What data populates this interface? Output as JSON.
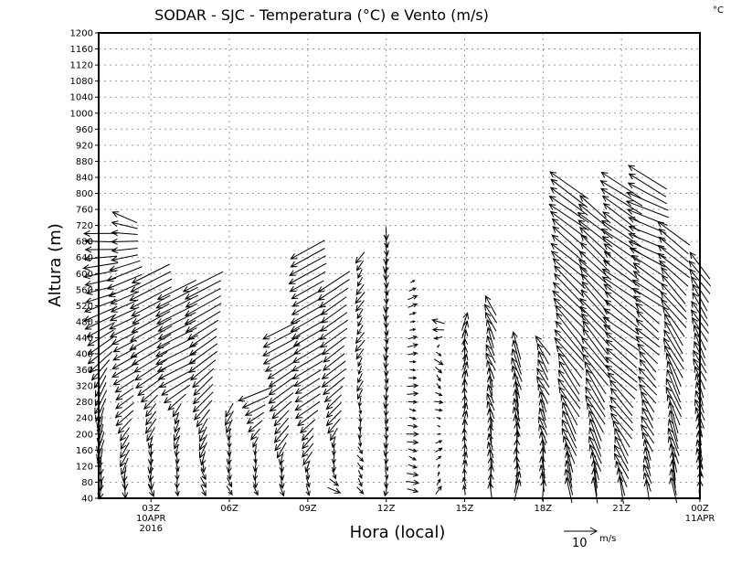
{
  "chart_data": {
    "type": "vector",
    "title": "SODAR - SJC - Temperatura (°C) e Vento (m/s)",
    "corner_unit": "°C",
    "xlabel": "Hora (local)",
    "ylabel": "Altura (m)",
    "ylim": [
      40,
      1200
    ],
    "yticks": [
      40,
      80,
      120,
      160,
      200,
      240,
      280,
      320,
      360,
      400,
      440,
      480,
      520,
      560,
      600,
      640,
      680,
      720,
      760,
      800,
      840,
      880,
      920,
      960,
      1000,
      1040,
      1080,
      1120,
      1160,
      1200
    ],
    "xlim_hours": [
      1,
      24
    ],
    "xticks": [
      {
        "hour": 3,
        "label": "03Z",
        "sub": [
          "10APR",
          "2016"
        ]
      },
      {
        "hour": 6,
        "label": "06Z",
        "sub": []
      },
      {
        "hour": 9,
        "label": "09Z",
        "sub": []
      },
      {
        "hour": 12,
        "label": "12Z",
        "sub": []
      },
      {
        "hour": 15,
        "label": "15Z",
        "sub": []
      },
      {
        "hour": 18,
        "label": "18Z",
        "sub": []
      },
      {
        "hour": 21,
        "label": "21Z",
        "sub": []
      },
      {
        "hour": 24,
        "label": "00Z",
        "sub": [
          "11APR"
        ]
      }
    ],
    "grid": true,
    "reference_vector": {
      "speed": 10,
      "label": "10",
      "unit": "m/s"
    },
    "level_step_m": 20,
    "first_level_m": 60,
    "columns_note": "per-hour wind profile keypoints [height_m, u_ms, v_ms], interpolated between levels",
    "columns": [
      {
        "hour": 1.08,
        "top": 700,
        "profile": [
          [
            60,
            0,
            -5
          ],
          [
            300,
            -3,
            -7
          ],
          [
            450,
            -9,
            -5
          ],
          [
            680,
            -10,
            0
          ],
          [
            700,
            -10,
            0
          ]
        ]
      },
      {
        "hour": 2,
        "top": 740,
        "profile": [
          [
            60,
            0,
            -5
          ],
          [
            300,
            -6,
            -4
          ],
          [
            600,
            -10,
            -4
          ],
          [
            700,
            -7,
            1
          ],
          [
            740,
            -8,
            3
          ]
        ]
      },
      {
        "hour": 3,
        "top": 600,
        "profile": [
          [
            60,
            1,
            -4
          ],
          [
            250,
            -3,
            -4
          ],
          [
            400,
            -12,
            -7
          ],
          [
            600,
            -12,
            -6
          ]
        ]
      },
      {
        "hour": 4,
        "top": 560,
        "profile": [
          [
            60,
            1,
            -3
          ],
          [
            250,
            -2,
            -4
          ],
          [
            350,
            -12,
            -6
          ],
          [
            560,
            -12,
            -6
          ]
        ]
      },
      {
        "hour": 5,
        "top": 580,
        "profile": [
          [
            60,
            2,
            -3
          ],
          [
            300,
            -6,
            -6
          ],
          [
            580,
            -12,
            -6
          ]
        ]
      },
      {
        "hour": 6,
        "top": 260,
        "profile": [
          [
            60,
            1,
            -3
          ],
          [
            260,
            -2,
            -4
          ]
        ]
      },
      {
        "hour": 7,
        "top": 310,
        "profile": [
          [
            60,
            1,
            -3
          ],
          [
            200,
            -2,
            -3
          ],
          [
            300,
            -10,
            -4
          ]
        ]
      },
      {
        "hour": 8,
        "top": 460,
        "profile": [
          [
            60,
            2,
            -3
          ],
          [
            200,
            -4,
            -5
          ],
          [
            460,
            -12,
            -6
          ]
        ]
      },
      {
        "hour": 9,
        "top": 660,
        "profile": [
          [
            60,
            1,
            -3
          ],
          [
            300,
            -8,
            -5
          ],
          [
            660,
            -11,
            -6
          ]
        ]
      },
      {
        "hour": 10,
        "top": 580,
        "profile": [
          [
            60,
            3,
            -2
          ],
          [
            300,
            -6,
            -5
          ],
          [
            580,
            -9,
            -6
          ]
        ]
      },
      {
        "hour": 11,
        "top": 640,
        "profile": [
          [
            60,
            2,
            -2
          ],
          [
            400,
            -2,
            -3
          ],
          [
            640,
            -2,
            -3
          ]
        ]
      },
      {
        "hour": 12,
        "top": 700,
        "profile": [
          [
            60,
            0,
            -3
          ],
          [
            700,
            0,
            -4
          ]
        ]
      },
      {
        "hour": 13,
        "top": 580,
        "profile": [
          [
            60,
            3,
            -1
          ],
          [
            580,
            2,
            1
          ]
        ]
      },
      {
        "hour": 14,
        "top": 480,
        "profile": [
          [
            60,
            1,
            2
          ],
          [
            380,
            2,
            -2
          ],
          [
            480,
            -4,
            1
          ]
        ]
      },
      {
        "hour": 15,
        "top": 480,
        "profile": [
          [
            60,
            0,
            3
          ],
          [
            480,
            1,
            5
          ]
        ]
      },
      {
        "hour": 16,
        "top": 520,
        "profile": [
          [
            60,
            0,
            5
          ],
          [
            520,
            -3,
            6
          ]
        ]
      },
      {
        "hour": 17,
        "top": 420,
        "profile": [
          [
            60,
            1,
            6
          ],
          [
            420,
            -3,
            8
          ]
        ]
      },
      {
        "hour": 18,
        "top": 420,
        "profile": [
          [
            60,
            0,
            6
          ],
          [
            420,
            -4,
            6
          ]
        ]
      },
      {
        "hour": 19,
        "top": 820,
        "profile": [
          [
            60,
            -1,
            8
          ],
          [
            400,
            -8,
            10
          ],
          [
            820,
            -12,
            8
          ]
        ]
      },
      {
        "hour": 20,
        "top": 760,
        "profile": [
          [
            60,
            -1,
            8
          ],
          [
            400,
            -8,
            10
          ],
          [
            760,
            -10,
            8
          ]
        ]
      },
      {
        "hour": 21,
        "top": 820,
        "profile": [
          [
            60,
            -2,
            8
          ],
          [
            400,
            -10,
            8
          ],
          [
            820,
            -12,
            8
          ]
        ]
      },
      {
        "hour": 22,
        "top": 840,
        "profile": [
          [
            60,
            -1,
            6
          ],
          [
            400,
            -6,
            6
          ],
          [
            640,
            -10,
            6
          ],
          [
            700,
            -12,
            4
          ],
          [
            840,
            -12,
            7
          ]
        ]
      },
      {
        "hour": 23,
        "top": 700,
        "profile": [
          [
            60,
            -1,
            8
          ],
          [
            380,
            -5,
            10
          ],
          [
            700,
            -10,
            7
          ]
        ]
      },
      {
        "hour": 24,
        "top": 620,
        "profile": [
          [
            60,
            0,
            6
          ],
          [
            620,
            -6,
            8
          ]
        ]
      }
    ]
  }
}
